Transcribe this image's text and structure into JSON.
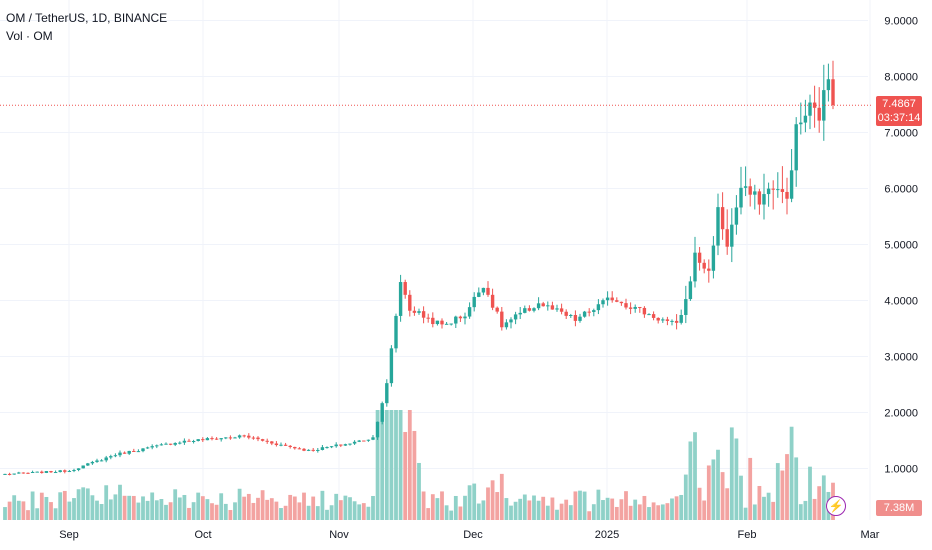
{
  "legend": {
    "symbol_line": "OM / TetherUS, 1D, BINANCE",
    "volume_line": "Vol · OM"
  },
  "price_labels": {
    "last_price": "7.4867",
    "countdown": "03:37:14",
    "volume_last": "7.38M"
  },
  "colors": {
    "up": "#26a69a",
    "down": "#ef5350",
    "volume_up": "#8fd1c8",
    "volume_down": "#f3a3a1",
    "grid": "#f0f3fa",
    "last_price_line": "#ef5350",
    "flash_icon": "#9c27b0"
  },
  "icons": {
    "flash": "lightning-icon"
  },
  "chart_data": {
    "type": "candlestick",
    "symbol": "OM / TetherUS",
    "interval": "1D",
    "exchange": "BINANCE",
    "y_axis": {
      "ticks": [
        "1.0000",
        "2.0000",
        "3.0000",
        "4.0000",
        "5.0000",
        "6.0000",
        "7.0000",
        "8.0000",
        "9.0000"
      ],
      "ylim": [
        0.2,
        9.5
      ]
    },
    "x_axis": {
      "ticks": [
        "Sep",
        "Oct",
        "Nov",
        "Dec",
        "2025",
        "Feb",
        "Mar"
      ]
    },
    "grid": true,
    "last_price": 7.4867,
    "anchors": [
      {
        "day": 0,
        "close": 0.9
      },
      {
        "day": 14,
        "close": 0.96
      },
      {
        "day": 24,
        "close": 1.25
      },
      {
        "day": 38,
        "close": 1.48
      },
      {
        "day": 52,
        "close": 1.58
      },
      {
        "day": 60,
        "close": 1.42
      },
      {
        "day": 66,
        "close": 1.32
      },
      {
        "day": 75,
        "close": 1.45
      },
      {
        "day": 80,
        "close": 1.55
      },
      {
        "day": 83,
        "close": 2.5
      },
      {
        "day": 86,
        "close": 4.35
      },
      {
        "day": 88,
        "close": 3.85
      },
      {
        "day": 95,
        "close": 3.55
      },
      {
        "day": 100,
        "close": 3.75
      },
      {
        "day": 104,
        "close": 4.3
      },
      {
        "day": 108,
        "close": 3.55
      },
      {
        "day": 116,
        "close": 3.95
      },
      {
        "day": 124,
        "close": 3.65
      },
      {
        "day": 132,
        "close": 4.05
      },
      {
        "day": 140,
        "close": 3.75
      },
      {
        "day": 146,
        "close": 3.55
      },
      {
        "day": 148,
        "close": 4.0
      },
      {
        "day": 150,
        "close": 4.8
      },
      {
        "day": 153,
        "close": 4.5
      },
      {
        "day": 155,
        "close": 5.6
      },
      {
        "day": 157,
        "close": 5.0
      },
      {
        "day": 160,
        "close": 6.0
      },
      {
        "day": 164,
        "close": 5.8
      },
      {
        "day": 167,
        "close": 6.05
      },
      {
        "day": 170,
        "close": 5.8
      },
      {
        "day": 172,
        "close": 7.05
      },
      {
        "day": 175,
        "close": 7.45
      },
      {
        "day": 177,
        "close": 7.3
      },
      {
        "day": 179,
        "close": 8.0
      },
      {
        "day": 180,
        "close": 7.49
      }
    ]
  }
}
